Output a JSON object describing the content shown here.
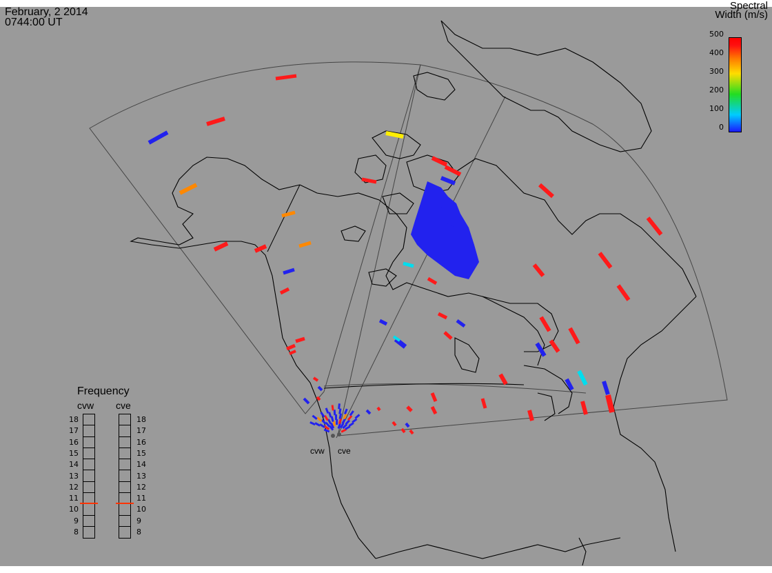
{
  "header": {
    "date": "February, 2 2014",
    "time": "0744:00 UT"
  },
  "colorbar": {
    "title_line1": "Spectral",
    "title_line2": "Width (m/s)",
    "ticks": [
      "500",
      "400",
      "300",
      "200",
      "100",
      "0"
    ]
  },
  "frequency_panel": {
    "title": "Frequency",
    "stations": [
      "cvw",
      "cve"
    ],
    "levels": [
      "18",
      "17",
      "16",
      "15",
      "14",
      "13",
      "12",
      "11",
      "10",
      "9",
      "8"
    ],
    "current": {
      "cvw": 10.5,
      "cve": 10.5
    }
  },
  "radar_sites": [
    {
      "name": "cvw"
    },
    {
      "name": "cve"
    }
  ],
  "colors": {
    "background": "#9a9a9a",
    "red": "#ff1a1a",
    "orange": "#ff8800",
    "yellow": "#ffee00",
    "blue": "#2222ee",
    "cyan": "#00ddee"
  }
}
